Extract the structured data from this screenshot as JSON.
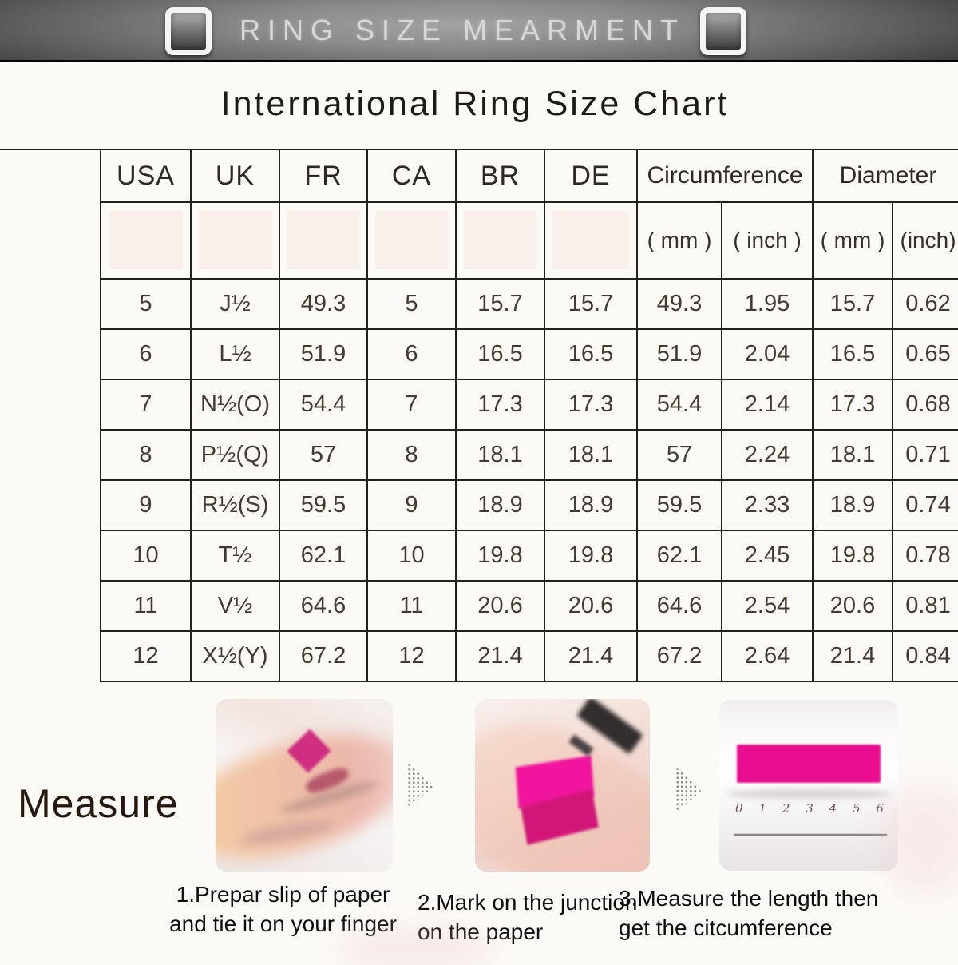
{
  "header_bar": {
    "title": "RING SIZE MEARMENT"
  },
  "page": {
    "title": "International Ring Size Chart"
  },
  "table": {
    "columns": [
      "USA",
      "UK",
      "FR",
      "CA",
      "BR",
      "DE"
    ],
    "groups": [
      {
        "label": "Circumference",
        "sub": [
          "( mm )",
          "( inch )"
        ]
      },
      {
        "label": "Diameter",
        "sub": [
          "( mm )",
          "(inch)"
        ]
      }
    ]
  },
  "chart_data": {
    "type": "table",
    "title": "International Ring Size Chart",
    "columns": [
      "USA",
      "UK",
      "FR",
      "CA",
      "BR",
      "DE",
      "Circumference ( mm )",
      "Circumference ( inch )",
      "Diameter ( mm )",
      "Diameter (inch)"
    ],
    "rows": [
      [
        "5",
        "J½",
        "49.3",
        "5",
        "15.7",
        "15.7",
        "49.3",
        "1.95",
        "15.7",
        "0.62"
      ],
      [
        "6",
        "L½",
        "51.9",
        "6",
        "16.5",
        "16.5",
        "51.9",
        "2.04",
        "16.5",
        "0.65"
      ],
      [
        "7",
        "N½(O)",
        "54.4",
        "7",
        "17.3",
        "17.3",
        "54.4",
        "2.14",
        "17.3",
        "0.68"
      ],
      [
        "8",
        "P½(Q)",
        "57",
        "8",
        "18.1",
        "18.1",
        "57",
        "2.24",
        "18.1",
        "0.71"
      ],
      [
        "9",
        "R½(S)",
        "59.5",
        "9",
        "18.9",
        "18.9",
        "59.5",
        "2.33",
        "18.9",
        "0.74"
      ],
      [
        "10",
        "T½",
        "62.1",
        "10",
        "19.8",
        "19.8",
        "62.1",
        "2.45",
        "19.8",
        "0.78"
      ],
      [
        "11",
        "V½",
        "64.6",
        "11",
        "20.6",
        "20.6",
        "64.6",
        "2.54",
        "20.6",
        "0.81"
      ],
      [
        "12",
        "X½(Y)",
        "67.2",
        "12",
        "21.4",
        "21.4",
        "67.2",
        "2.64",
        "21.4",
        "0.84"
      ]
    ]
  },
  "measure": {
    "label": "Measure",
    "steps": [
      {
        "line1": "1.Prepar slip of paper",
        "line2": "and tie it on your finger",
        "image": "finger-with-paper-slip-photo"
      },
      {
        "line1": "2.Mark on the junction",
        "line2": "on the paper",
        "image": "marking-paper-with-pen-photo"
      },
      {
        "line1": "3.Measure the length then",
        "line2": "get the citcumference",
        "image": "ruler-measuring-photo"
      }
    ],
    "ruler_digits": [
      "0",
      "1",
      "2",
      "3",
      "4",
      "5",
      "6"
    ]
  },
  "colors": {
    "accent_pink": "#ea0d90",
    "diamond_pink": "#d02f80",
    "banner_dark": "#0a0a0a",
    "table_line": "#24201d",
    "text_dark": "#3f3630"
  }
}
